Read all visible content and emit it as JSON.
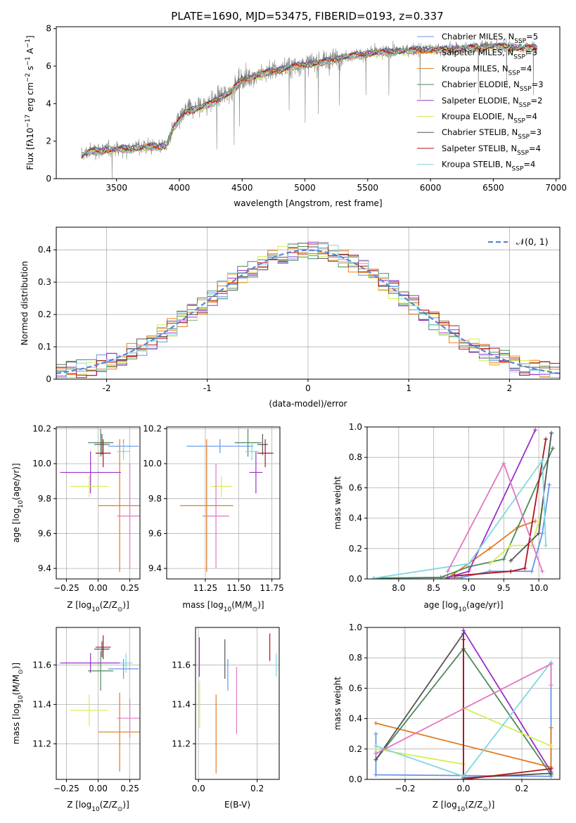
{
  "title": "PLATE=1690, MJD=53475, FIBERID=0193, z=0.337",
  "colors": {
    "chabrier_miles": "#6495ed",
    "salpeter_miles": "#ff7f0e",
    "kroupa_miles": "#e07b1f",
    "chabrier_elodie": "#4e8a5a",
    "salpeter_elodie": "#9b30c8",
    "kroupa_elodie": "#d4ee50",
    "chabrier_stelib": "#555555",
    "salpeter_stelib": "#b5121b",
    "kroupa_stelib": "#80d8e0",
    "spectrum": "#888888",
    "model_dash": "#5b84d6",
    "pink": "#e377c2"
  },
  "chart_data": [
    {
      "id": "spectrum",
      "type": "line",
      "xlabel": "wavelength [Angstrom, rest frame]",
      "ylabel": "Flux [f$_\\lambda$10$^{-17}$ erg cm$^{-2}$ s$^{-1}$ A$^{-1}$]",
      "ylabel_text": "Flux [fλ10",
      "ylabel_sup1": "−17",
      "ylabel_mid": " erg cm",
      "ylabel_sup2": "−2",
      "ylabel_mid2": " s",
      "ylabel_sup3": "−1",
      "ylabel_end": " A",
      "ylabel_sup4": "−1",
      "ylabel_close": "]",
      "xlim": [
        3020,
        7030
      ],
      "ylim": [
        0,
        8.1
      ],
      "xticks": [
        3500,
        4000,
        4500,
        5000,
        5500,
        6000,
        6500,
        7000
      ],
      "yticks": [
        0,
        2,
        4,
        6,
        8
      ],
      "legend_position": "top-right",
      "legend": [
        {
          "name": "Chabrier MILES, N",
          "sub": "SSP",
          "suffix": "=5"
        },
        {
          "name": "Salpeter MILES, N",
          "sub": "SSP",
          "suffix": "=3"
        },
        {
          "name": "Kroupa MILES, N",
          "sub": "SSP",
          "suffix": "=4"
        },
        {
          "name": "Chabrier ELODIE, N",
          "sub": "SSP",
          "suffix": "=3"
        },
        {
          "name": "Salpeter ELODIE, N",
          "sub": "SSP",
          "suffix": "=2"
        },
        {
          "name": "Kroupa ELODIE, N",
          "sub": "SSP",
          "suffix": "=4"
        },
        {
          "name": "Chabrier STELIB, N",
          "sub": "SSP",
          "suffix": "=3"
        },
        {
          "name": "Salpeter STELIB, N",
          "sub": "SSP",
          "suffix": "=4"
        },
        {
          "name": "Kroupa STELIB, N",
          "sub": "SSP",
          "suffix": "=4"
        }
      ],
      "continuum_knots": {
        "x": [
          3220,
          3300,
          3500,
          3700,
          3900,
          3950,
          4050,
          4200,
          4400,
          4500,
          4700,
          4900,
          5100,
          5300,
          5500,
          5700,
          5900,
          6100,
          6300,
          6500,
          6700,
          6850
        ],
        "y": [
          1.25,
          1.5,
          1.6,
          1.7,
          1.8,
          2.7,
          3.6,
          3.9,
          4.6,
          5.3,
          5.7,
          6.0,
          6.2,
          6.5,
          6.7,
          6.8,
          6.9,
          6.9,
          7.0,
          7.1,
          7.0,
          7.0
        ]
      }
    },
    {
      "id": "residuals",
      "type": "histogram",
      "xlabel": "(data-model)/error",
      "ylabel": "Normed distribution",
      "xlim": [
        -2.5,
        2.5
      ],
      "ylim": [
        0,
        0.47
      ],
      "xticks": [
        -2,
        -1,
        0,
        1,
        2
      ],
      "yticks": [
        0.0,
        0.1,
        0.2,
        0.3,
        0.4
      ],
      "grid": true,
      "legend_position": "top-right",
      "legend_label": "𝒩(0, 1)",
      "bin_width": 0.1
    },
    {
      "id": "age-vs-Z",
      "type": "errorbar",
      "xlabel": "Z [log",
      "xlabel_sub": "10",
      "xlabel_rest": "(Z/Z",
      "xlabel_sub2": "⊙",
      "xlabel_end": ")]",
      "ylabel": "age  [log",
      "ylabel_sub": "10",
      "ylabel_rest": "(age/yr)]",
      "xlim": [
        -0.33,
        0.33
      ],
      "ylim": [
        9.34,
        10.21
      ],
      "xticks": [
        -0.25,
        0.0,
        0.25
      ],
      "xticklabels": [
        "−0.25",
        "0.00",
        "0.25"
      ],
      "yticks": [
        9.4,
        9.6,
        9.8,
        10.0,
        10.2
      ],
      "yticklabels": [
        "9.4",
        "9.6",
        "9.8",
        "10.0",
        "10.2"
      ],
      "points": [
        {
          "c": "chabrier_miles",
          "x": 0.2,
          "xerr": 0.12,
          "y": 10.1,
          "yerr": 0.04
        },
        {
          "c": "kroupa_miles",
          "x": 0.17,
          "xerr": 0.17,
          "y": 9.76,
          "yerr": 0.38
        },
        {
          "c": "chabrier_elodie",
          "x": 0.02,
          "xerr": 0.1,
          "y": 10.12,
          "yerr": 0.08
        },
        {
          "c": "salpeter_elodie",
          "x": -0.06,
          "xerr": 0.24,
          "y": 9.95,
          "yerr": 0.12
        },
        {
          "c": "kroupa_elodie",
          "x": -0.07,
          "xerr": 0.15,
          "y": 9.87,
          "yerr": 0.06
        },
        {
          "c": "chabrier_stelib",
          "x": 0.03,
          "xerr": 0.06,
          "y": 10.11,
          "yerr": 0.06
        },
        {
          "c": "salpeter_stelib",
          "x": 0.04,
          "xerr": 0.06,
          "y": 10.06,
          "yerr": 0.08
        },
        {
          "c": "kroupa_stelib",
          "x": 0.2,
          "xerr": 0.05,
          "y": 10.07,
          "yerr": 0.05
        },
        {
          "c": "pink",
          "x": 0.25,
          "xerr": 0.1,
          "y": 9.7,
          "yerr": 0.3
        }
      ]
    },
    {
      "id": "age-vs-mass",
      "type": "errorbar",
      "xlabel": "mass [log",
      "xlabel_sub": "10",
      "xlabel_rest": "(M/M",
      "xlabel_sub2": "⊙",
      "xlabel_end": ")]",
      "xlim": [
        10.96,
        11.81
      ],
      "ylim": [
        9.34,
        10.21
      ],
      "xticks": [
        11.25,
        11.5,
        11.75
      ],
      "xticklabels": [
        "11.25",
        "11.50",
        "11.75"
      ],
      "yticks": [
        9.4,
        9.6,
        9.8,
        10.0,
        10.2
      ],
      "yticklabels": [
        "9.4",
        "9.6",
        "9.8",
        "10.0",
        "10.2"
      ],
      "points": [
        {
          "c": "chabrier_miles",
          "x": 11.36,
          "xerr": 0.25,
          "y": 10.1,
          "yerr": 0.04
        },
        {
          "c": "kroupa_miles",
          "x": 11.26,
          "xerr": 0.2,
          "y": 9.76,
          "yerr": 0.38
        },
        {
          "c": "chabrier_elodie",
          "x": 11.57,
          "xerr": 0.1,
          "y": 10.12,
          "yerr": 0.08
        },
        {
          "c": "salpeter_elodie",
          "x": 11.63,
          "xerr": 0.05,
          "y": 9.95,
          "yerr": 0.12
        },
        {
          "c": "kroupa_elodie",
          "x": 11.37,
          "xerr": 0.08,
          "y": 9.87,
          "yerr": 0.06
        },
        {
          "c": "chabrier_stelib",
          "x": 11.68,
          "xerr": 0.04,
          "y": 10.11,
          "yerr": 0.06
        },
        {
          "c": "salpeter_stelib",
          "x": 11.7,
          "xerr": 0.06,
          "y": 10.06,
          "yerr": 0.08
        },
        {
          "c": "kroupa_stelib",
          "x": 11.6,
          "xerr": 0.05,
          "y": 10.07,
          "yerr": 0.05
        },
        {
          "c": "pink",
          "x": 11.33,
          "xerr": 0.1,
          "y": 9.7,
          "yerr": 0.3
        }
      ]
    },
    {
      "id": "massweight-vs-age",
      "type": "line",
      "xlabel": "age  [log",
      "xlabel_sub": "10",
      "xlabel_rest": "(age/yr)]",
      "ylabel": "mass weight",
      "xlim": [
        7.55,
        10.3
      ],
      "ylim": [
        0,
        1.0
      ],
      "xticks": [
        8.0,
        8.5,
        9.0,
        9.5,
        10.0
      ],
      "xticklabels": [
        "8.0",
        "8.5",
        "9.0",
        "9.5",
        "10.0"
      ],
      "yticks": [
        0.0,
        0.2,
        0.4,
        0.6,
        0.8,
        1.0
      ],
      "yticklabels": [
        "0.0",
        "0.2",
        "0.4",
        "0.6",
        "0.8",
        "1.0"
      ],
      "series": [
        {
          "c": "chabrier_miles",
          "x": [
            7.65,
            8.9,
            9.3,
            9.9,
            10.05,
            10.15
          ],
          "y": [
            0.005,
            0.01,
            0.05,
            0.05,
            0.3,
            0.62
          ]
        },
        {
          "c": "kroupa_miles",
          "x": [
            8.7,
            9.3,
            9.7,
            9.95
          ],
          "y": [
            0.005,
            0.2,
            0.34,
            0.38
          ]
        },
        {
          "c": "chabrier_elodie",
          "x": [
            7.65,
            8.6,
            9.0,
            9.5,
            10.2
          ],
          "y": [
            0.005,
            0.01,
            0.08,
            0.13,
            0.86
          ]
        },
        {
          "c": "salpeter_elodie",
          "x": [
            8.7,
            9.0,
            9.95
          ],
          "y": [
            0.01,
            0.05,
            0.98
          ]
        },
        {
          "c": "kroupa_elodie",
          "x": [
            9.3,
            9.6,
            9.9,
            10.05
          ],
          "y": [
            0.1,
            0.22,
            0.22,
            0.46
          ]
        },
        {
          "c": "chabrier_stelib",
          "x": [
            9.6,
            10.0,
            10.18
          ],
          "y": [
            0.12,
            0.3,
            0.96
          ]
        },
        {
          "c": "salpeter_stelib",
          "x": [
            8.8,
            9.6,
            9.8,
            10.1
          ],
          "y": [
            0.02,
            0.05,
            0.07,
            0.92
          ]
        },
        {
          "c": "kroupa_stelib",
          "x": [
            7.65,
            9.0,
            10.05,
            10.1
          ],
          "y": [
            0.005,
            0.1,
            0.78,
            0.22
          ]
        },
        {
          "c": "pink",
          "x": [
            8.7,
            9.5,
            10.05
          ],
          "y": [
            0.05,
            0.76,
            0.05
          ]
        }
      ]
    },
    {
      "id": "mass-vs-Z",
      "type": "errorbar",
      "xlabel": "Z [log",
      "xlabel_sub": "10",
      "xlabel_rest": "(Z/Z",
      "xlabel_sub2": "⊙",
      "xlabel_end": ")]",
      "ylabel": "mass [log",
      "ylabel_sub": "10",
      "ylabel_rest": "(M/M",
      "ylabel_sub2": "⊙",
      "ylabel_end": ")]",
      "xlim": [
        -0.33,
        0.33
      ],
      "ylim": [
        11.02,
        11.79
      ],
      "xticks": [
        -0.25,
        0.0,
        0.25
      ],
      "xticklabels": [
        "−0.25",
        "0.00",
        "0.25"
      ],
      "yticks": [
        11.2,
        11.4,
        11.6
      ],
      "yticklabels": [
        "11.2",
        "11.4",
        "11.6"
      ],
      "points": [
        {
          "c": "chabrier_miles",
          "x": 0.2,
          "xerr": 0.12,
          "y": 11.58,
          "yerr": 0.05
        },
        {
          "c": "kroupa_miles",
          "x": 0.17,
          "xerr": 0.17,
          "y": 11.26,
          "yerr": 0.2
        },
        {
          "c": "chabrier_elodie",
          "x": 0.02,
          "xerr": 0.1,
          "y": 11.57,
          "yerr": 0.1
        },
        {
          "c": "salpeter_elodie",
          "x": -0.06,
          "xerr": 0.24,
          "y": 11.61,
          "yerr": 0.05
        },
        {
          "c": "kroupa_elodie",
          "x": -0.07,
          "xerr": 0.15,
          "y": 11.37,
          "yerr": 0.08
        },
        {
          "c": "chabrier_stelib",
          "x": 0.03,
          "xerr": 0.06,
          "y": 11.68,
          "yerr": 0.04
        },
        {
          "c": "salpeter_stelib",
          "x": 0.04,
          "xerr": 0.06,
          "y": 11.69,
          "yerr": 0.06
        },
        {
          "c": "kroupa_stelib",
          "x": 0.22,
          "xerr": 0.05,
          "y": 11.61,
          "yerr": 0.05
        },
        {
          "c": "pink",
          "x": 0.25,
          "xerr": 0.1,
          "y": 11.33,
          "yerr": 0.1
        }
      ]
    },
    {
      "id": "mass-vs-EBV",
      "type": "errorbar",
      "xlabel": "E(B-V)",
      "xlim": [
        -0.01,
        0.275
      ],
      "ylim": [
        11.02,
        11.79
      ],
      "xticks": [
        0.0,
        0.2
      ],
      "xticklabels": [
        "0.0",
        "0.2"
      ],
      "yticks": [
        11.2,
        11.4,
        11.6
      ],
      "yticklabels": [
        "11.2",
        "11.4",
        "11.6"
      ],
      "points": [
        {
          "c": "chabrier_miles",
          "x": 0.1,
          "y": 11.55,
          "yerr": 0.08
        },
        {
          "c": "kroupa_miles",
          "x": 0.06,
          "y": 11.25,
          "yerr": 0.2
        },
        {
          "c": "salpeter_elodie",
          "x": 0.003,
          "y": 11.64,
          "yerr": 0.1
        },
        {
          "c": "kroupa_elodie",
          "x": 0.004,
          "y": 11.4,
          "yerr": 0.12
        },
        {
          "c": "chabrier_stelib",
          "x": 0.09,
          "y": 11.63,
          "yerr": 0.1
        },
        {
          "c": "salpeter_stelib",
          "x": 0.243,
          "y": 11.69,
          "yerr": 0.07
        },
        {
          "c": "kroupa_stelib",
          "x": 0.265,
          "y": 11.6,
          "yerr": 0.06
        },
        {
          "c": "pink",
          "x": 0.13,
          "y": 11.42,
          "yerr": 0.17
        }
      ]
    },
    {
      "id": "massweight-vs-Z",
      "type": "line",
      "xlabel": "Z [log",
      "xlabel_sub": "10",
      "xlabel_rest": "(Z/Z",
      "xlabel_sub2": "⊙",
      "xlabel_end": ")]",
      "ylabel": "mass weight",
      "xlim": [
        -0.33,
        0.33
      ],
      "ylim": [
        0,
        1.0
      ],
      "xticks": [
        -0.2,
        0.0,
        0.2
      ],
      "xticklabels": [
        "−0.2",
        "0.0",
        "0.2"
      ],
      "yticks": [
        0.0,
        0.2,
        0.4,
        0.6,
        0.8,
        1.0
      ],
      "yticklabels": [
        "0.0",
        "0.2",
        "0.4",
        "0.6",
        "0.8",
        "1.0"
      ],
      "series": [
        {
          "c": "chabrier_miles",
          "x": [
            -0.3,
            -0.3,
            0.3,
            0.3
          ],
          "y": [
            0.3,
            0.03,
            0.02,
            0.76
          ]
        },
        {
          "c": "kroupa_miles",
          "x": [
            -0.3,
            0.3,
            0.3
          ],
          "y": [
            0.37,
            0.08,
            0.34
          ]
        },
        {
          "c": "chabrier_elodie",
          "x": [
            -0.3,
            0.0,
            0.3
          ],
          "y": [
            0.13,
            0.86,
            0.03
          ]
        },
        {
          "c": "salpeter_elodie",
          "x": [
            0.0,
            0.0,
            0.3
          ],
          "y": [
            0.02,
            0.98,
            0.05
          ]
        },
        {
          "c": "kroupa_elodie",
          "x": [
            -0.3,
            0.0,
            0.0,
            0.3
          ],
          "y": [
            0.2,
            0.1,
            0.47,
            0.22
          ]
        },
        {
          "c": "chabrier_stelib",
          "x": [
            -0.3,
            0.0,
            0.0,
            0.3
          ],
          "y": [
            0.13,
            0.96,
            0.01,
            0.04
          ]
        },
        {
          "c": "salpeter_stelib",
          "x": [
            0.0,
            0.0,
            0.3
          ],
          "y": [
            0.92,
            0.0,
            0.07
          ]
        },
        {
          "c": "kroupa_stelib",
          "x": [
            -0.3,
            0.0,
            0.3
          ],
          "y": [
            0.22,
            0.02,
            0.77
          ]
        },
        {
          "c": "pink",
          "x": [
            -0.3,
            0.3,
            0.3
          ],
          "y": [
            0.17,
            0.76,
            0.62
          ]
        }
      ]
    }
  ]
}
